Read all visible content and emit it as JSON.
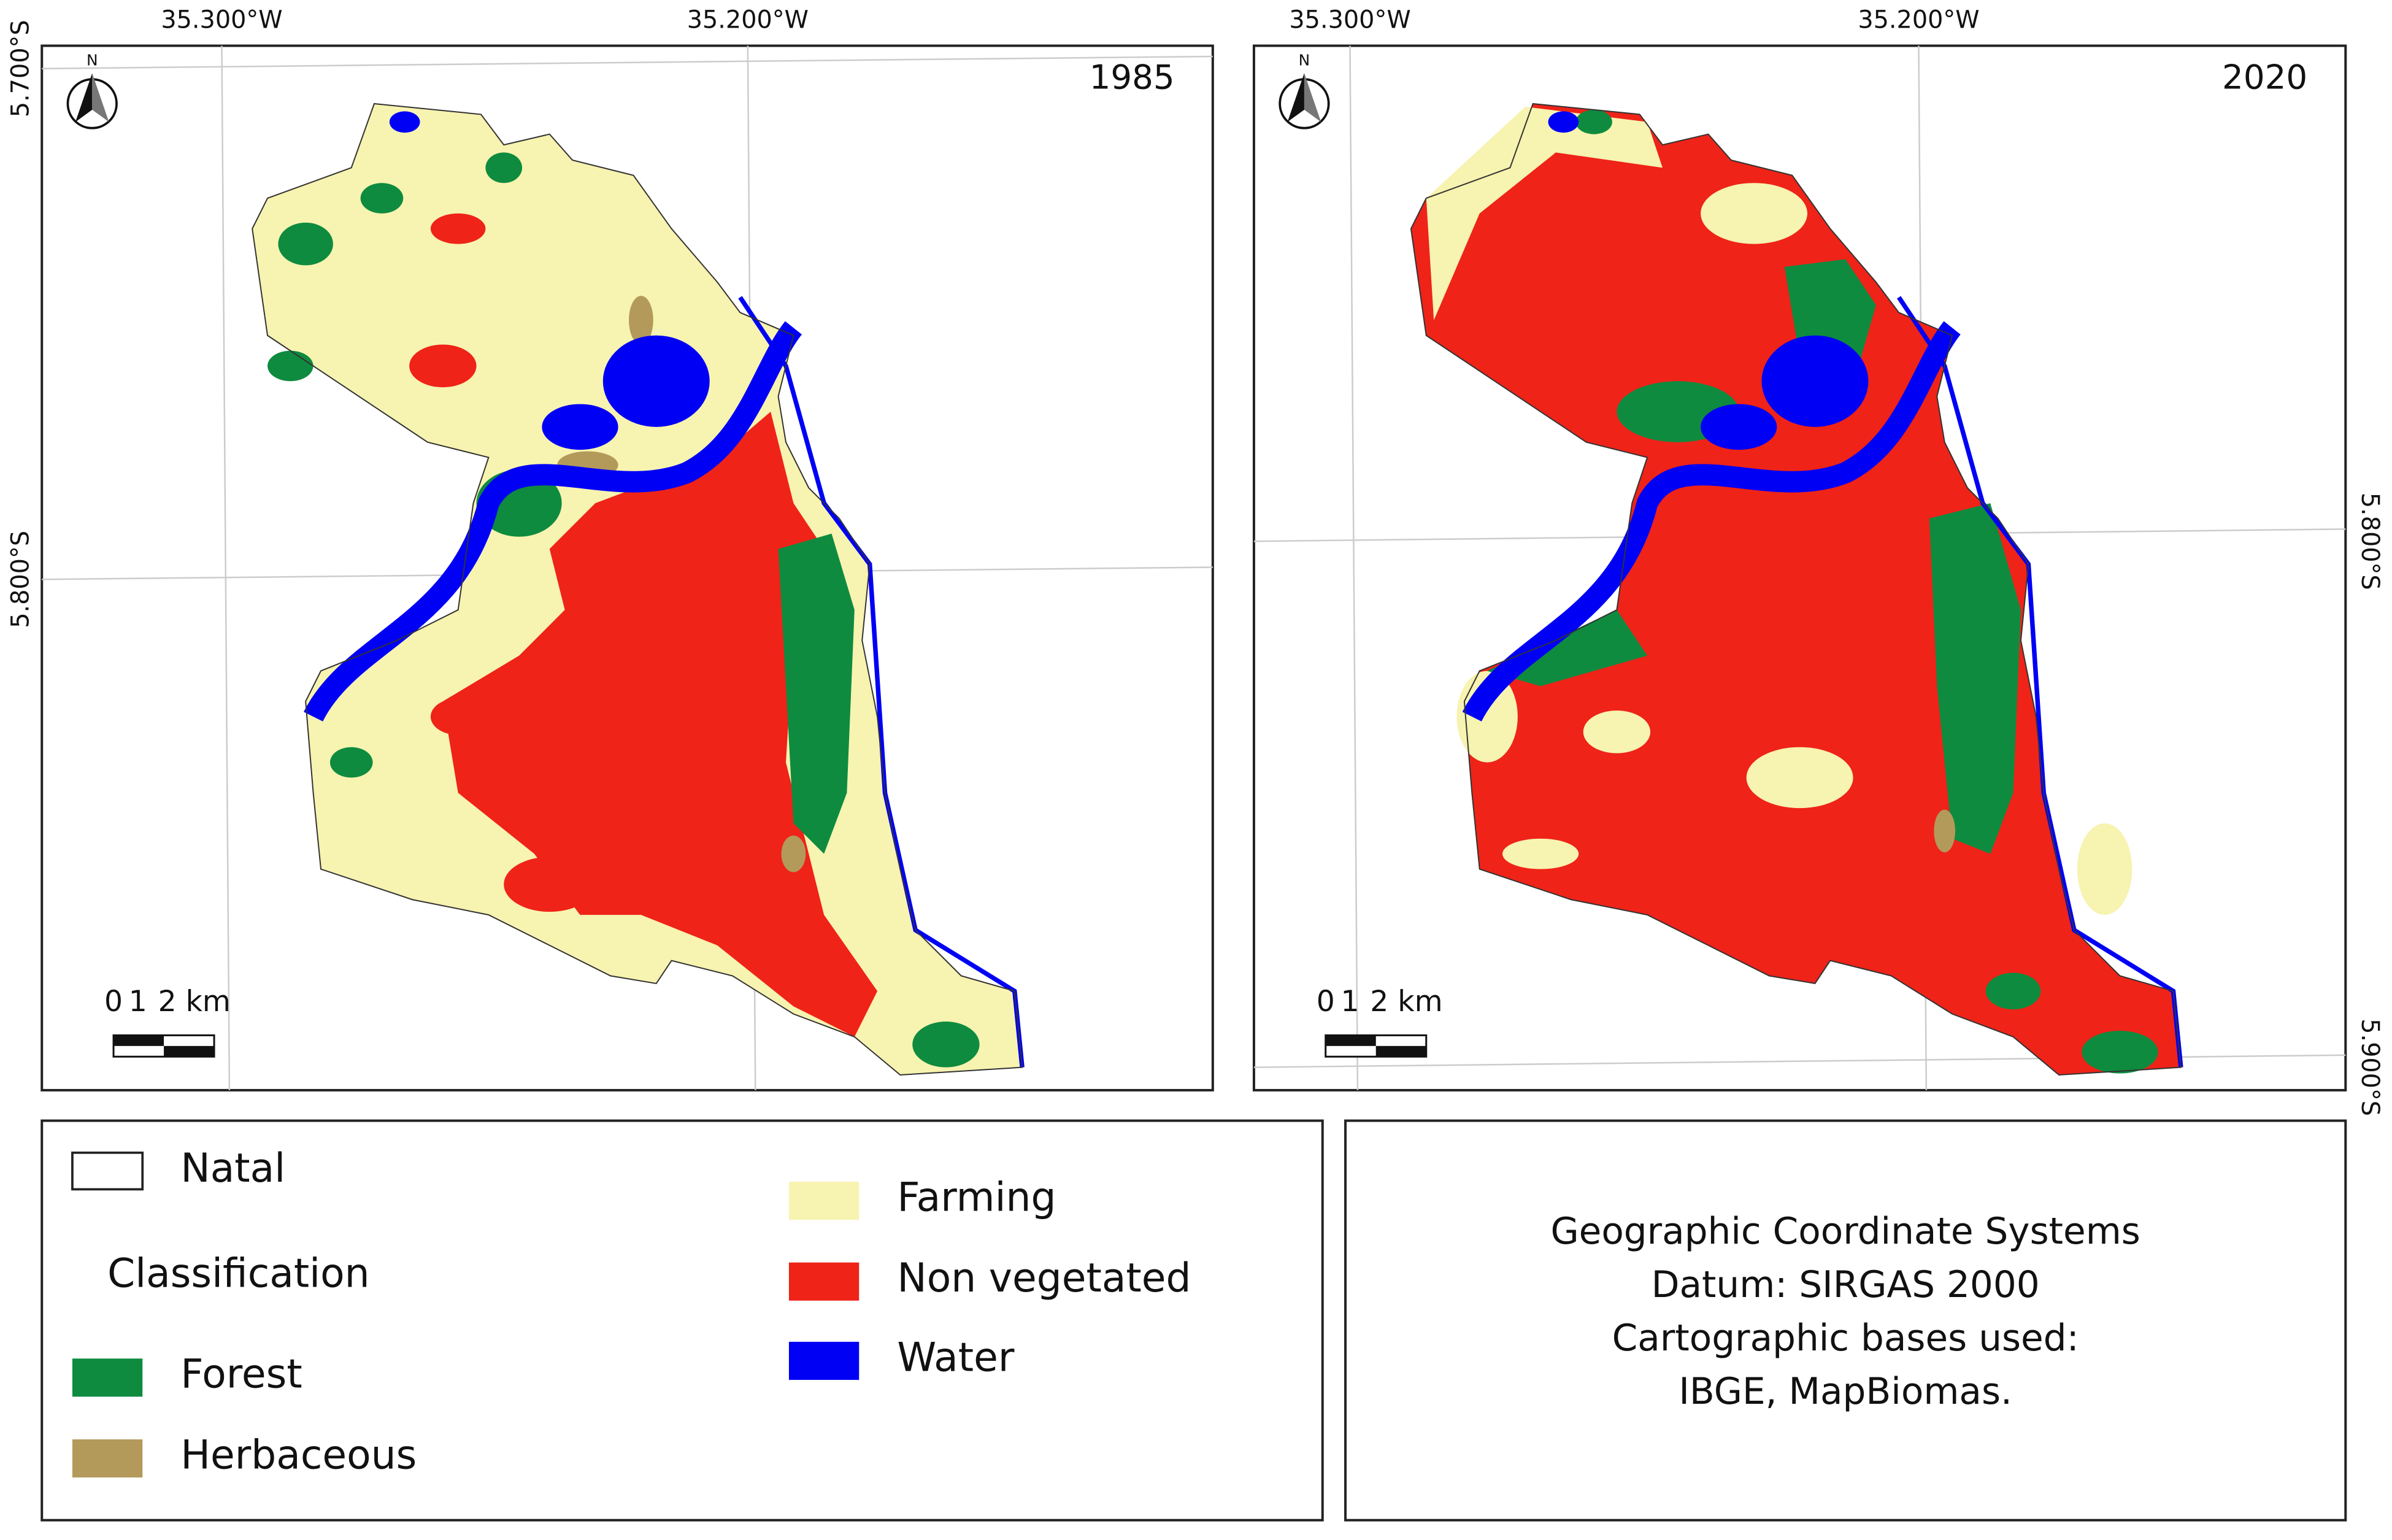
{
  "maps": [
    {
      "year": "1985",
      "lon_labels": [
        "35.300°W",
        "35.200°W"
      ],
      "lat_labels": [
        "5.700°S",
        "5.800°S"
      ],
      "north": "N",
      "scale_labels": [
        "0",
        "1",
        "2 km"
      ]
    },
    {
      "year": "2020",
      "lon_labels": [
        "35.300°W",
        "35.200°W"
      ],
      "lat_labels": [
        "5.800°S",
        "5.900°S"
      ],
      "north": "N",
      "scale_labels": [
        "0",
        "1",
        "2 km"
      ]
    }
  ],
  "legend": {
    "boundary": "Natal",
    "heading": "Classification",
    "items": [
      {
        "label": "Forest",
        "color": "#0e8b3f"
      },
      {
        "label": "Herbaceous",
        "color": "#b39a5b"
      },
      {
        "label": "Farming",
        "color": "#f7f3b0"
      },
      {
        "label": "Non vegetated",
        "color": "#ef2318"
      },
      {
        "label": "Water",
        "color": "#0000f5"
      }
    ]
  },
  "info": {
    "lines": [
      "Geographic Coordinate Systems",
      "Datum: SIRGAS 2000",
      "Cartographic bases used:",
      "IBGE, MapBiomas."
    ]
  }
}
